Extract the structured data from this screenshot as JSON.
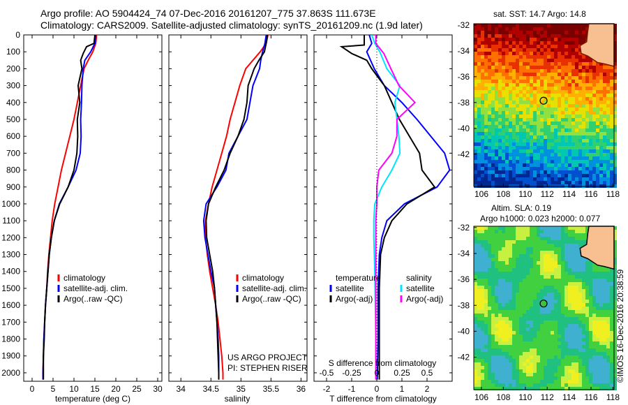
{
  "header": {
    "line1": "Argo profile: AO 5904424_74 07-Dec-2016 20161207_775 37.863S 111.673E",
    "line2": "Climatology: CARS2009. Satellite-adjusted climatology: synTS_20161209.nc (1.9d later)"
  },
  "colors": {
    "climatology": "#ff0000",
    "satellite": "#0000ff",
    "argo": "#000000",
    "salinity_satellite": "#00e5ff",
    "salinity_argo": "#ff00ff"
  },
  "chart_data": [
    {
      "type": "line",
      "id": "temperature",
      "xlabel": "temperature (deg C)",
      "ylabel": "",
      "xlim": [
        -2,
        31
      ],
      "ylim": [
        2050,
        0
      ],
      "x_ticks": [
        "0",
        "5",
        "10",
        "15",
        "20",
        "25",
        "30"
      ],
      "y_ticks": [
        "0",
        "100",
        "200",
        "300",
        "400",
        "500",
        "600",
        "700",
        "800",
        "900",
        "1000",
        "1100",
        "1200",
        "1300",
        "1400",
        "1500",
        "1600",
        "1700",
        "1800",
        "1900",
        "2000"
      ],
      "legend": [
        "climatology",
        "satellite-adj. clim.",
        "Argo(..raw -QC)"
      ],
      "legend_position": "lower-right",
      "series": [
        {
          "name": "climatology",
          "color": "#ff0000",
          "points": [
            [
              15.4,
              0
            ],
            [
              15.2,
              50
            ],
            [
              14.5,
              100
            ],
            [
              13.4,
              150
            ],
            [
              12.4,
              200
            ],
            [
              11.6,
              300
            ],
            [
              10.8,
              400
            ],
            [
              10.0,
              500
            ],
            [
              9.0,
              600
            ],
            [
              8.0,
              700
            ],
            [
              7.0,
              800
            ],
            [
              6.2,
              900
            ],
            [
              5.4,
              1000
            ],
            [
              4.8,
              1100
            ],
            [
              4.4,
              1200
            ],
            [
              4.0,
              1300
            ],
            [
              3.7,
              1400
            ],
            [
              3.5,
              1500
            ],
            [
              3.2,
              1600
            ],
            [
              3.0,
              1700
            ],
            [
              2.8,
              1800
            ],
            [
              2.7,
              1900
            ],
            [
              2.6,
              2000
            ],
            [
              2.6,
              2040
            ]
          ]
        },
        {
          "name": "satellite-adj. clim.",
          "color": "#0000ff",
          "points": [
            [
              15.2,
              0
            ],
            [
              15.0,
              50
            ],
            [
              14.0,
              100
            ],
            [
              12.6,
              150
            ],
            [
              12.2,
              200
            ],
            [
              11.9,
              300
            ],
            [
              11.8,
              400
            ],
            [
              11.6,
              500
            ],
            [
              11.7,
              600
            ],
            [
              11.5,
              700
            ],
            [
              10.5,
              800
            ],
            [
              8.6,
              900
            ],
            [
              6.5,
              1000
            ],
            [
              5.3,
              1100
            ],
            [
              4.6,
              1200
            ],
            [
              4.1,
              1300
            ],
            [
              3.8,
              1400
            ],
            [
              3.5,
              1500
            ],
            [
              3.2,
              1600
            ],
            [
              3.0,
              1700
            ],
            [
              2.8,
              1800
            ],
            [
              2.7,
              1900
            ],
            [
              2.6,
              2000
            ],
            [
              2.6,
              2040
            ]
          ]
        },
        {
          "name": "Argo(..raw -QC)",
          "color": "#000000",
          "points": [
            [
              15.0,
              0
            ],
            [
              14.8,
              50
            ],
            [
              13.0,
              70
            ],
            [
              12.2,
              110
            ],
            [
              11.6,
              150
            ],
            [
              11.9,
              200
            ],
            [
              11.0,
              300
            ],
            [
              11.4,
              400
            ],
            [
              10.8,
              500
            ],
            [
              10.9,
              600
            ],
            [
              10.7,
              700
            ],
            [
              10.0,
              800
            ],
            [
              8.6,
              900
            ],
            [
              6.6,
              1000
            ],
            [
              5.3,
              1100
            ],
            [
              4.6,
              1200
            ],
            [
              4.1,
              1300
            ],
            [
              3.8,
              1400
            ],
            [
              3.5,
              1500
            ],
            [
              3.2,
              1600
            ],
            [
              3.0,
              1700
            ],
            [
              2.9,
              1800
            ],
            [
              2.7,
              1900
            ],
            [
              2.7,
              2000
            ],
            [
              2.7,
              2040
            ]
          ]
        }
      ]
    },
    {
      "type": "line",
      "id": "salinity",
      "xlabel": "salinity",
      "ylabel": "",
      "xlim": [
        33.8,
        36.1
      ],
      "ylim": [
        2050,
        0
      ],
      "x_ticks": [
        "34",
        "34.5",
        "35",
        "35.5",
        "36"
      ],
      "legend": [
        "climatology",
        "satellite-adj. clim.",
        "Argo(..raw -QC)"
      ],
      "legend_position": "lower-right",
      "annotation": [
        "US ARGO PROJECT",
        "PI: STEPHEN RISER"
      ],
      "series": [
        {
          "name": "climatology",
          "color": "#ff0000",
          "points": [
            [
              35.45,
              0
            ],
            [
              35.42,
              50
            ],
            [
              35.32,
              100
            ],
            [
              35.2,
              150
            ],
            [
              35.08,
              200
            ],
            [
              34.98,
              300
            ],
            [
              34.9,
              400
            ],
            [
              34.82,
              500
            ],
            [
              34.76,
              600
            ],
            [
              34.68,
              700
            ],
            [
              34.6,
              800
            ],
            [
              34.52,
              900
            ],
            [
              34.46,
              1000
            ],
            [
              34.41,
              1100
            ],
            [
              34.41,
              1200
            ],
            [
              34.44,
              1300
            ],
            [
              34.48,
              1400
            ],
            [
              34.53,
              1500
            ],
            [
              34.58,
              1600
            ],
            [
              34.62,
              1700
            ],
            [
              34.65,
              1800
            ],
            [
              34.68,
              1900
            ],
            [
              34.7,
              2000
            ],
            [
              34.7,
              2040
            ]
          ]
        },
        {
          "name": "satellite-adj. clim.",
          "color": "#0000ff",
          "points": [
            [
              35.42,
              0
            ],
            [
              35.4,
              50
            ],
            [
              35.36,
              100
            ],
            [
              35.33,
              150
            ],
            [
              35.31,
              200
            ],
            [
              35.2,
              300
            ],
            [
              35.15,
              400
            ],
            [
              35.1,
              500
            ],
            [
              34.95,
              600
            ],
            [
              34.8,
              700
            ],
            [
              34.75,
              800
            ],
            [
              34.6,
              900
            ],
            [
              34.42,
              1000
            ],
            [
              34.38,
              1100
            ],
            [
              34.4,
              1200
            ],
            [
              34.45,
              1300
            ],
            [
              34.5,
              1400
            ],
            [
              34.56,
              1500
            ],
            [
              34.58,
              1600
            ],
            [
              34.6,
              1700
            ],
            [
              34.62,
              1800
            ],
            [
              34.63,
              1900
            ],
            [
              34.63,
              2000
            ],
            [
              34.63,
              2040
            ]
          ]
        },
        {
          "name": "Argo(..raw -QC)",
          "color": "#000000",
          "points": [
            [
              35.44,
              0
            ],
            [
              35.42,
              50
            ],
            [
              35.39,
              100
            ],
            [
              35.3,
              150
            ],
            [
              35.22,
              200
            ],
            [
              35.12,
              300
            ],
            [
              35.1,
              400
            ],
            [
              35.05,
              500
            ],
            [
              34.95,
              600
            ],
            [
              34.82,
              700
            ],
            [
              34.72,
              800
            ],
            [
              34.58,
              900
            ],
            [
              34.46,
              1000
            ],
            [
              34.42,
              1100
            ],
            [
              34.43,
              1200
            ],
            [
              34.48,
              1300
            ],
            [
              34.53,
              1400
            ],
            [
              34.56,
              1500
            ],
            [
              34.58,
              1600
            ],
            [
              34.6,
              1700
            ],
            [
              34.61,
              1800
            ],
            [
              34.62,
              1900
            ],
            [
              34.63,
              2000
            ],
            [
              34.63,
              2040
            ]
          ]
        }
      ]
    },
    {
      "type": "line",
      "id": "differences",
      "xlabel": "T difference from climatology",
      "xlabel_top": "S difference from climatology",
      "ylabel": "",
      "xlim": [
        -2.5,
        3.0
      ],
      "ylim": [
        2050,
        0
      ],
      "x_ticks": [
        "-2",
        "-1",
        "0",
        "1",
        "2"
      ],
      "s_ticks": [
        "-0.5",
        "-0.25",
        "0",
        "0.25",
        "0.5"
      ],
      "legend_temperature": {
        "title": "temperature",
        "items": [
          "satellite",
          "Argo(-adj)"
        ]
      },
      "legend_salinity": {
        "title": "salinity",
        "items": [
          "satellite",
          "Argo(-adj)"
        ]
      },
      "legend_position": "bottom",
      "series": [
        {
          "name": "satellite",
          "group": "temperature",
          "color": "#0000ff",
          "points": [
            [
              -0.3,
              0
            ],
            [
              -0.2,
              50
            ],
            [
              -0.4,
              100
            ],
            [
              -0.1,
              200
            ],
            [
              0.3,
              300
            ],
            [
              1.0,
              400
            ],
            [
              1.6,
              500
            ],
            [
              2.7,
              700
            ],
            [
              2.9,
              800
            ],
            [
              2.4,
              900
            ],
            [
              1.1,
              1000
            ],
            [
              0.4,
              1100
            ],
            [
              0.2,
              1200
            ],
            [
              0.1,
              1300
            ],
            [
              0.05,
              1500
            ],
            [
              0.05,
              1800
            ],
            [
              0.02,
              2040
            ]
          ]
        },
        {
          "name": "Argo(-adj)",
          "group": "temperature",
          "color": "#000000",
          "points": [
            [
              -0.5,
              0
            ],
            [
              -0.5,
              60
            ],
            [
              -1.4,
              70
            ],
            [
              -1.0,
              110
            ],
            [
              -0.4,
              150
            ],
            [
              -0.2,
              200
            ],
            [
              0.3,
              300
            ],
            [
              0.6,
              400
            ],
            [
              0.9,
              500
            ],
            [
              1.3,
              600
            ],
            [
              1.7,
              700
            ],
            [
              1.8,
              800
            ],
            [
              2.3,
              900
            ],
            [
              1.2,
              1000
            ],
            [
              0.6,
              1100
            ],
            [
              0.3,
              1200
            ],
            [
              0.15,
              1300
            ],
            [
              0.1,
              1500
            ],
            [
              0.1,
              1800
            ],
            [
              0.1,
              2040
            ]
          ]
        },
        {
          "name": "satellite",
          "group": "salinity",
          "color": "#00e5ff",
          "points": [
            [
              -0.05,
              0
            ],
            [
              -0.02,
              50
            ],
            [
              0.03,
              100
            ],
            [
              0.1,
              200
            ],
            [
              0.23,
              300
            ],
            [
              0.18,
              400
            ],
            [
              0.2,
              500
            ],
            [
              0.22,
              600
            ],
            [
              0.23,
              700
            ],
            [
              0.15,
              800
            ],
            [
              0.05,
              900
            ],
            [
              -0.02,
              1000
            ],
            [
              -0.03,
              1100
            ],
            [
              -0.03,
              1200
            ],
            [
              -0.02,
              1400
            ],
            [
              -0.01,
              1800
            ],
            [
              -0.01,
              2040
            ]
          ]
        },
        {
          "name": "Argo(-adj)",
          "group": "salinity",
          "color": "#ff00ff",
          "points": [
            [
              -0.01,
              0
            ],
            [
              -0.01,
              50
            ],
            [
              0.07,
              110
            ],
            [
              0.14,
              200
            ],
            [
              0.22,
              300
            ],
            [
              0.38,
              400
            ],
            [
              0.2,
              500
            ],
            [
              0.2,
              600
            ],
            [
              0.15,
              700
            ],
            [
              0.02,
              800
            ],
            [
              0.0,
              900
            ],
            [
              -0.0,
              1000
            ],
            [
              -0.01,
              1100
            ],
            [
              -0.01,
              1200
            ],
            [
              -0.01,
              1400
            ],
            [
              -0.01,
              1800
            ],
            [
              -0.01,
              2040
            ]
          ]
        }
      ]
    },
    {
      "type": "heatmap",
      "id": "sst-map",
      "title": "sat. SST: 14.7  Argo: 14.8",
      "x_ticks": [
        "106",
        "108",
        "110",
        "112",
        "114",
        "116",
        "118"
      ],
      "y_ticks": [
        "-32",
        "-34",
        "-36",
        "-38",
        "-40",
        "-42"
      ],
      "xlim": [
        105.3,
        118.1
      ],
      "ylim": [
        -31.9,
        -44.5
      ],
      "marker": {
        "lon": 111.67,
        "lat": -37.86
      }
    },
    {
      "type": "heatmap",
      "id": "sla-map",
      "title": "Altim. SLA: 0.19",
      "subtitle": "Argo h1000: 0.023 h2000: 0.077",
      "x_ticks": [
        "106",
        "108",
        "110",
        "112",
        "114",
        "116",
        "118"
      ],
      "y_ticks": [
        "-32",
        "-34",
        "-36",
        "-38",
        "-40",
        "-42"
      ],
      "xlim": [
        105.3,
        118.1
      ],
      "ylim": [
        -31.9,
        -44.5
      ],
      "marker": {
        "lon": 111.67,
        "lat": -37.86
      }
    }
  ],
  "footer": {
    "credit": "©IMOS 16-Dec-2016 20:38:59"
  }
}
